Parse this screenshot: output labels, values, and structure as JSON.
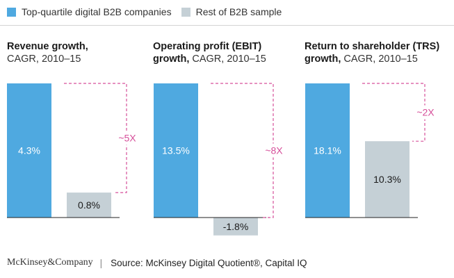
{
  "legend": {
    "top_quartile": "Top-quartile digital B2B companies",
    "rest": "Rest of B2B sample"
  },
  "colors": {
    "top_quartile": "#4fa9e0",
    "rest": "#c5d0d6",
    "multiplier": "#d64f9a",
    "baseline": "#222222"
  },
  "panels": [
    {
      "title_bold": "Revenue growth,",
      "title_rest": "",
      "subtitle": "CAGR, 2010–15"
    },
    {
      "title_bold": "Operating profit (EBIT)",
      "title_rest": "growth,",
      "subtitle": "CAGR, 2010–15"
    },
    {
      "title_bold": "Return to shareholder (TRS)",
      "title_rest": "growth,",
      "subtitle": "CAGR, 2010–15"
    }
  ],
  "chart_data": [
    {
      "type": "bar",
      "categories": [
        "Top-quartile digital B2B companies",
        "Rest of B2B sample"
      ],
      "values": [
        4.3,
        0.8
      ],
      "value_labels": [
        "4.3%",
        "0.8%"
      ],
      "annotation": "~5X"
    },
    {
      "type": "bar",
      "categories": [
        "Top-quartile digital B2B companies",
        "Rest of B2B sample"
      ],
      "values": [
        13.5,
        -1.8
      ],
      "value_labels": [
        "13.5%",
        "-1.8%"
      ],
      "annotation": "~8X"
    },
    {
      "type": "bar",
      "categories": [
        "Top-quartile digital B2B companies",
        "Rest of B2B sample"
      ],
      "values": [
        18.1,
        10.3
      ],
      "value_labels": [
        "18.1%",
        "10.3%"
      ],
      "annotation": "~2X"
    }
  ],
  "footer": {
    "brand": "McKinsey&Company",
    "separator": "|",
    "source": "Source: McKinsey Digital Quotient®, Capital IQ"
  }
}
